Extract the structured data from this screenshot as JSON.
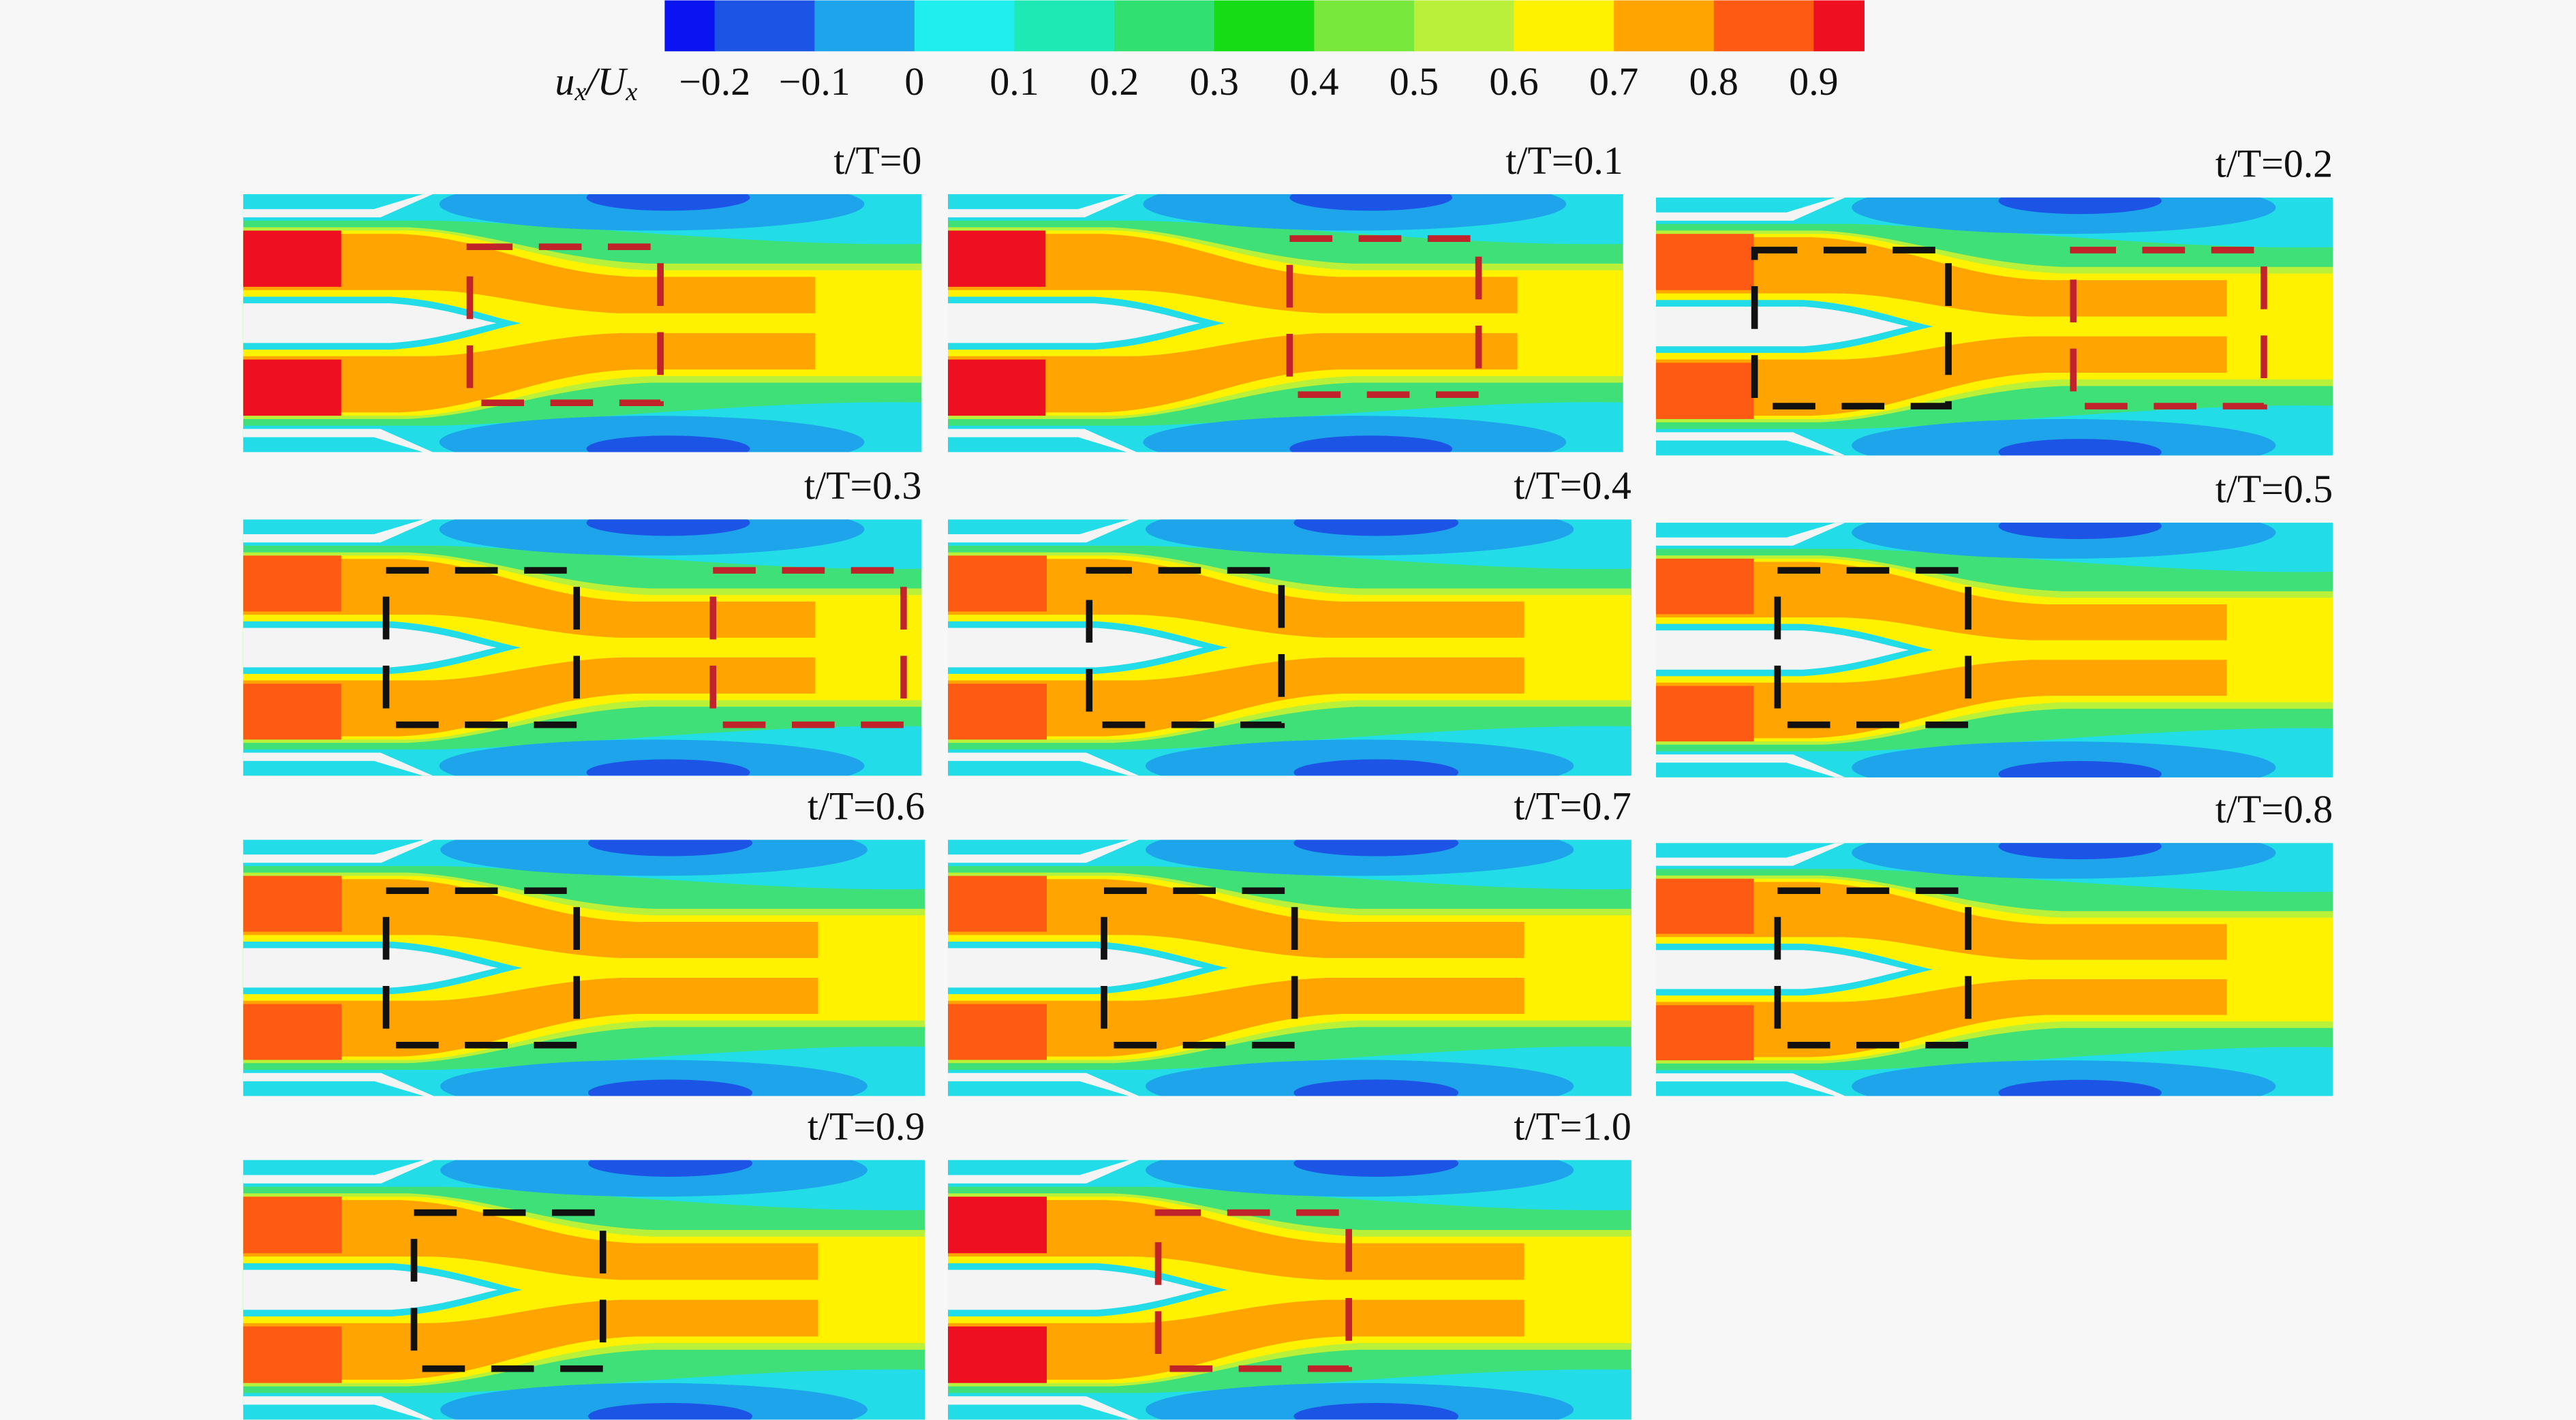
{
  "colorbar": {
    "label_parts": [
      "u",
      "x",
      "/U",
      "x"
    ],
    "ticks": [
      {
        "value": -0.2,
        "label": "−0.2"
      },
      {
        "value": -0.1,
        "label": "−0.1"
      },
      0,
      0.1,
      0.2,
      0.3,
      0.4,
      0.5,
      0.6,
      0.7,
      0.8,
      0.9
    ],
    "colors": [
      "#0a14f0",
      "#1c55e6",
      "#1ea4ea",
      "#20eeee",
      "#1ee8b4",
      "#30e070",
      "#16dc16",
      "#78e83c",
      "#baf03a",
      "#fff200",
      "#ffa400",
      "#ff5a14",
      "#ee1020"
    ]
  },
  "panels": [
    {
      "label": "t/T=0"
    },
    {
      "label": "t/T=0.1"
    },
    {
      "label": "t/T=0.2"
    },
    {
      "label": "t/T=0.3"
    },
    {
      "label": "t/T=0.4"
    },
    {
      "label": "t/T=0.5"
    },
    {
      "label": "t/T=0.6"
    },
    {
      "label": "t/T=0.7"
    },
    {
      "label": "t/T=0.8"
    },
    {
      "label": "t/T=0.9"
    },
    {
      "label": "t/T=1.0"
    }
  ]
}
